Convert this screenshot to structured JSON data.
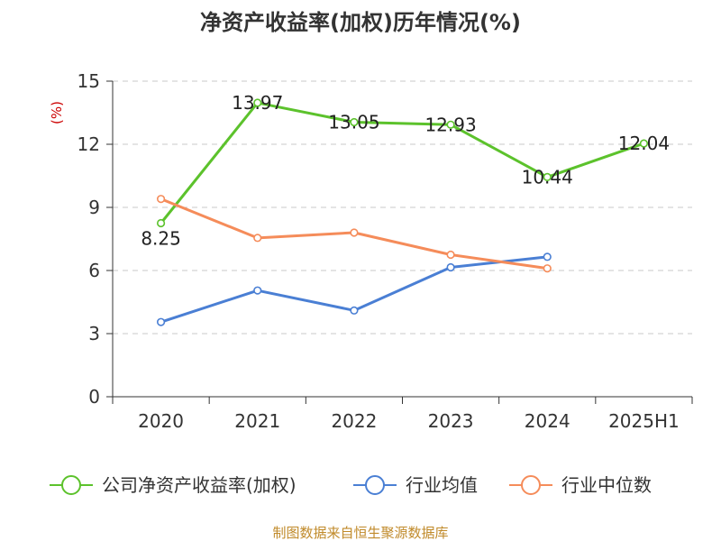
{
  "chart_data": {
    "type": "line",
    "title": "净资产收益率(加权)历年情况(%)",
    "ylabel": "(%)",
    "xlabel": "",
    "categories": [
      "2020",
      "2021",
      "2022",
      "2023",
      "2024",
      "2025H1"
    ],
    "ylim": [
      0,
      15
    ],
    "yticks": [
      0,
      3,
      6,
      9,
      12,
      15
    ],
    "grid": true,
    "legend_position": "bottom",
    "series": [
      {
        "name": "公司净资产收益率(加权)",
        "color": "#5cc22c",
        "values": [
          8.25,
          13.97,
          13.05,
          12.93,
          10.44,
          12.04
        ],
        "labels": [
          "8.25",
          "13.97",
          "13.05",
          "12.93",
          "10.44",
          "12.04"
        ]
      },
      {
        "name": "行业均值",
        "color": "#4a7fd4",
        "values": [
          3.55,
          5.05,
          4.1,
          6.15,
          6.65,
          null
        ]
      },
      {
        "name": "行业中位数",
        "color": "#f58c5a",
        "values": [
          9.4,
          7.55,
          7.8,
          6.75,
          6.1,
          null
        ]
      }
    ]
  },
  "source": "制图数据来自恒生聚源数据库"
}
